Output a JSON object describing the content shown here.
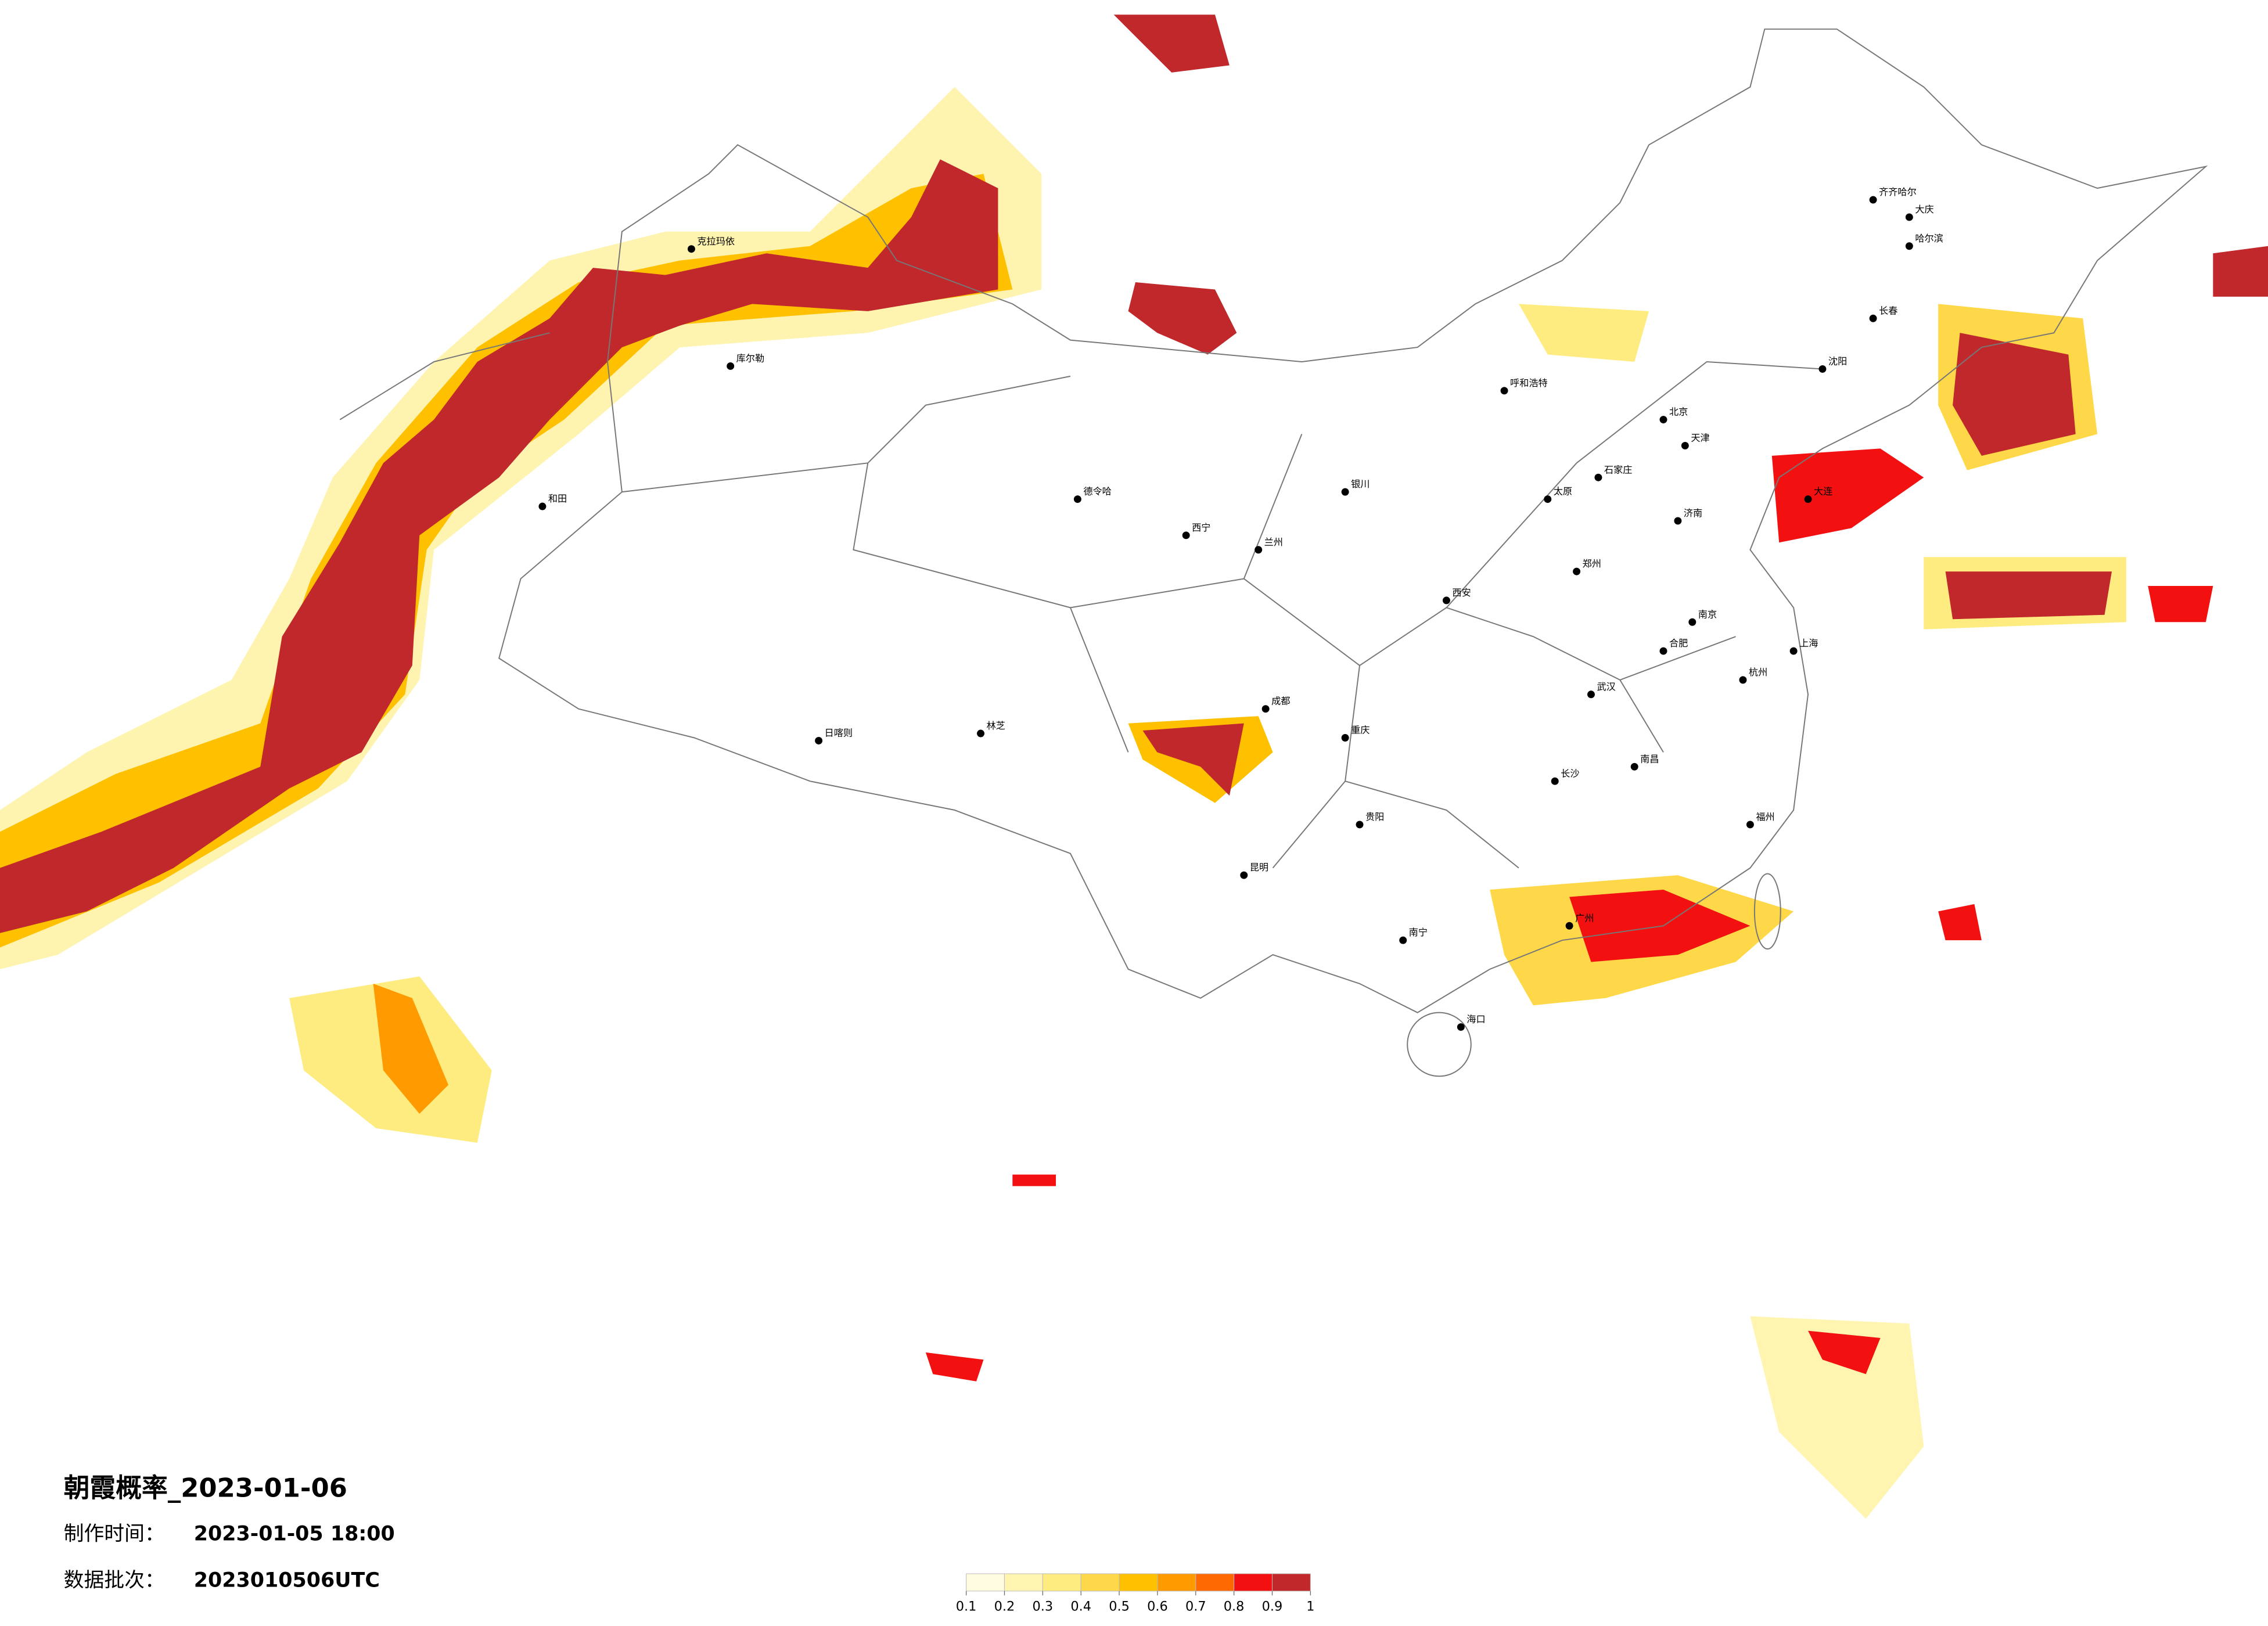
{
  "title": "朝霞概率_2023-01-06",
  "info": [
    {
      "label": "制作时间：",
      "value": "2023-01-05 18:00"
    },
    {
      "label": "数据批次：",
      "value": "2023010506UTC"
    }
  ],
  "legend": {
    "colors": [
      "#fffbe0",
      "#fff5b0",
      "#ffec80",
      "#ffd84a",
      "#ffc000",
      "#ff9a00",
      "#ff6a00",
      "#f21010",
      "#c0282c"
    ],
    "ticks": [
      0.1,
      0.2,
      0.3,
      0.4,
      0.5,
      0.6,
      0.7,
      0.8,
      0.9,
      1
    ]
  },
  "cities": [
    "北京",
    "天津",
    "石家庄",
    "太原",
    "呼和浩特",
    "沈阳",
    "长春",
    "哈尔滨",
    "济南",
    "郑州",
    "西安",
    "兰州",
    "西宁",
    "银川",
    "成都",
    "重庆",
    "贵阳",
    "昆明",
    "南宁",
    "广州",
    "海口",
    "长沙",
    "武汉",
    "南昌",
    "福州",
    "杭州",
    "上海",
    "南京",
    "合肥",
    "克拉玛依",
    "库尔勒",
    "和田",
    "德令哈",
    "日喀则",
    "林芝",
    "大庆",
    "齐齐哈尔",
    "大连"
  ]
}
